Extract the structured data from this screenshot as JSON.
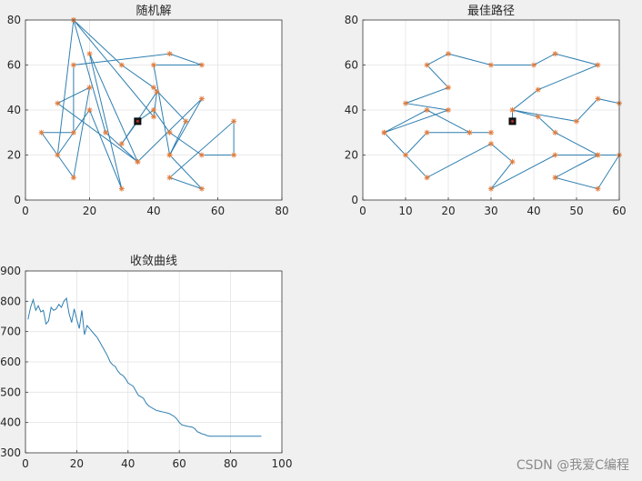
{
  "figure": {
    "background": "#f0f0f0"
  },
  "watermark": "CSDN @我爱C编程",
  "chart_data": [
    {
      "id": "random",
      "type": "line",
      "title": "随机解",
      "xlim": [
        0,
        80
      ],
      "ylim": [
        0,
        80
      ],
      "xticks": [
        0,
        20,
        40,
        60,
        80
      ],
      "yticks": [
        0,
        20,
        40,
        60,
        80
      ],
      "grid": true,
      "line_color": "#2f7fb0",
      "marker_color": "#e07a3a",
      "marker": "asterisk",
      "start_point": [
        35,
        35
      ],
      "x": [
        35,
        40,
        45,
        55,
        65,
        65,
        45,
        55,
        45,
        40,
        55,
        45,
        15,
        15,
        5,
        15,
        20,
        10,
        35,
        25,
        15,
        30,
        40,
        50,
        45,
        55,
        35,
        20,
        30,
        20,
        10,
        15,
        40,
        41,
        30,
        35
      ],
      "y": [
        35,
        40,
        30,
        20,
        20,
        35,
        10,
        5,
        20,
        60,
        60,
        65,
        60,
        30,
        30,
        10,
        50,
        43,
        17,
        30,
        80,
        60,
        50,
        35,
        20,
        45,
        17,
        65,
        5,
        40,
        20,
        80,
        37,
        48,
        25,
        35
      ]
    },
    {
      "id": "best",
      "type": "line",
      "title": "最佳路径",
      "xlim": [
        0,
        60
      ],
      "ylim": [
        0,
        80
      ],
      "xticks": [
        0,
        10,
        20,
        30,
        40,
        50,
        60
      ],
      "yticks": [
        0,
        20,
        40,
        60,
        80
      ],
      "grid": true,
      "line_color": "#2f7fb0",
      "marker_color": "#e07a3a",
      "marker": "asterisk",
      "start_point": [
        35,
        35
      ],
      "x": [
        35,
        35,
        41,
        45,
        55,
        60,
        55,
        45,
        55,
        45,
        30,
        35,
        30,
        15,
        5,
        10,
        15,
        30,
        25,
        15,
        5,
        20,
        10,
        20,
        15,
        20,
        30,
        40,
        45,
        55,
        41,
        35,
        50,
        55,
        60
      ],
      "y": [
        35,
        40,
        37,
        30,
        20,
        20,
        5,
        10,
        20,
        20,
        5,
        17,
        25,
        10,
        30,
        20,
        30,
        30,
        30,
        40,
        30,
        40,
        43,
        50,
        60,
        65,
        60,
        60,
        65,
        60,
        49,
        40,
        35,
        45,
        43
      ]
    },
    {
      "id": "convergence",
      "type": "line",
      "title": "收敛曲线",
      "xlim": [
        0,
        100
      ],
      "ylim": [
        300,
        900
      ],
      "xticks": [
        0,
        20,
        40,
        60,
        80,
        100
      ],
      "yticks": [
        300,
        400,
        500,
        600,
        700,
        800,
        900
      ],
      "grid": true,
      "line_color": "#2f7fb0",
      "x": [
        1,
        2,
        3,
        4,
        5,
        6,
        7,
        8,
        9,
        10,
        11,
        12,
        13,
        14,
        15,
        16,
        17,
        18,
        19,
        20,
        21,
        22,
        23,
        24,
        25,
        26,
        27,
        28,
        29,
        30,
        31,
        32,
        33,
        34,
        35,
        36,
        37,
        38,
        39,
        40,
        41,
        42,
        43,
        44,
        45,
        46,
        47,
        48,
        49,
        50,
        51,
        52,
        53,
        54,
        55,
        56,
        57,
        58,
        59,
        60,
        61,
        62,
        63,
        64,
        65,
        66,
        67,
        68,
        69,
        70,
        71,
        72,
        73,
        74,
        75,
        76,
        77,
        78,
        79,
        80,
        81,
        82,
        83,
        84,
        85,
        86,
        87,
        88,
        89,
        90,
        91,
        92
      ],
      "y": [
        740,
        780,
        805,
        770,
        785,
        765,
        770,
        725,
        735,
        780,
        770,
        775,
        790,
        780,
        800,
        810,
        760,
        730,
        775,
        740,
        710,
        770,
        690,
        720,
        710,
        700,
        690,
        680,
        665,
        650,
        635,
        620,
        600,
        590,
        585,
        570,
        560,
        555,
        545,
        530,
        525,
        520,
        505,
        490,
        485,
        480,
        465,
        455,
        450,
        445,
        440,
        438,
        436,
        434,
        432,
        430,
        425,
        420,
        412,
        400,
        392,
        390,
        388,
        386,
        385,
        380,
        370,
        366,
        362,
        360,
        356,
        355,
        355,
        355,
        355,
        355,
        355,
        355,
        355,
        355,
        355,
        355,
        355,
        355,
        355,
        355,
        355,
        355,
        355,
        355,
        355,
        355
      ]
    }
  ]
}
